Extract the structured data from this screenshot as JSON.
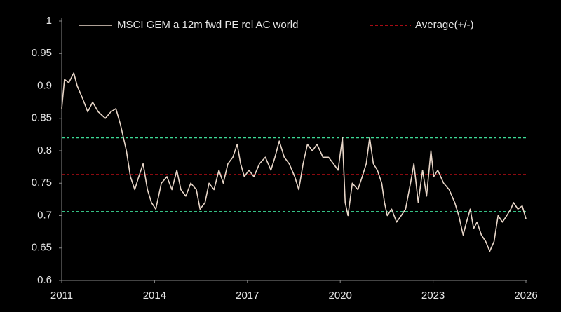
{
  "chart_data": {
    "type": "line",
    "x": [
      2011.0,
      2011.09,
      2011.23,
      2011.39,
      2011.5,
      2011.68,
      2011.84,
      2012.0,
      2012.18,
      2012.41,
      2012.59,
      2012.75,
      2012.9,
      2013.09,
      2013.22,
      2013.36,
      2013.49,
      2013.63,
      2013.77,
      2013.9,
      2014.04,
      2014.22,
      2014.4,
      2014.56,
      2014.72,
      2014.85,
      2015.01,
      2015.17,
      2015.35,
      2015.47,
      2015.63,
      2015.76,
      2015.92,
      2016.08,
      2016.22,
      2016.37,
      2016.53,
      2016.67,
      2016.78,
      2016.9,
      2017.05,
      2017.21,
      2017.39,
      2017.58,
      2017.76,
      2017.89,
      2018.03,
      2018.19,
      2018.35,
      2018.53,
      2018.66,
      2018.8,
      2018.94,
      2019.1,
      2019.25,
      2019.44,
      2019.62,
      2019.78,
      2019.93,
      2020.07,
      2020.16,
      2020.25,
      2020.39,
      2020.57,
      2020.71,
      2020.84,
      2020.95,
      2021.07,
      2021.2,
      2021.34,
      2021.43,
      2021.52,
      2021.66,
      2021.82,
      2021.97,
      2022.11,
      2022.27,
      2022.38,
      2022.52,
      2022.66,
      2022.79,
      2022.93,
      2023.02,
      2023.15,
      2023.34,
      2023.52,
      2023.7,
      2023.83,
      2023.97,
      2024.08,
      2024.2,
      2024.31,
      2024.42,
      2024.56,
      2024.7,
      2024.83,
      2024.97,
      2025.1,
      2025.24,
      2025.38,
      2025.51,
      2025.6,
      2025.74,
      2025.88,
      2026.0
    ],
    "series": [
      {
        "name": "MSCI GEM a 12m fwd PE rel AC world",
        "color": "#e8d6c8",
        "values": [
          0.865,
          0.91,
          0.905,
          0.92,
          0.9,
          0.88,
          0.86,
          0.875,
          0.86,
          0.85,
          0.86,
          0.865,
          0.84,
          0.8,
          0.76,
          0.74,
          0.76,
          0.78,
          0.74,
          0.72,
          0.71,
          0.75,
          0.76,
          0.74,
          0.77,
          0.74,
          0.73,
          0.75,
          0.74,
          0.71,
          0.72,
          0.75,
          0.74,
          0.77,
          0.75,
          0.78,
          0.79,
          0.81,
          0.78,
          0.76,
          0.77,
          0.76,
          0.78,
          0.79,
          0.77,
          0.79,
          0.815,
          0.79,
          0.78,
          0.76,
          0.74,
          0.78,
          0.81,
          0.8,
          0.81,
          0.79,
          0.79,
          0.78,
          0.77,
          0.82,
          0.72,
          0.7,
          0.75,
          0.74,
          0.76,
          0.78,
          0.82,
          0.78,
          0.77,
          0.75,
          0.72,
          0.7,
          0.71,
          0.69,
          0.7,
          0.71,
          0.75,
          0.78,
          0.72,
          0.77,
          0.73,
          0.8,
          0.76,
          0.77,
          0.75,
          0.74,
          0.72,
          0.7,
          0.67,
          0.69,
          0.71,
          0.68,
          0.69,
          0.67,
          0.66,
          0.645,
          0.66,
          0.7,
          0.69,
          0.7,
          0.71,
          0.72,
          0.71,
          0.715,
          0.695
        ]
      }
    ],
    "reference_lines": {
      "name": "Average(+/-)",
      "values": [
        0.82,
        0.763,
        0.706
      ],
      "colors": [
        "#3ddc97",
        "#e0101a",
        "#3ddc97"
      ]
    },
    "xlim": [
      2011,
      2026
    ],
    "xticks": [
      2011,
      2014,
      2017,
      2020,
      2023,
      2026
    ],
    "ylim": [
      0.6,
      1
    ],
    "yticks": [
      0.6,
      0.65,
      0.7,
      0.75,
      0.8,
      0.85,
      0.9,
      0.95,
      1
    ]
  }
}
